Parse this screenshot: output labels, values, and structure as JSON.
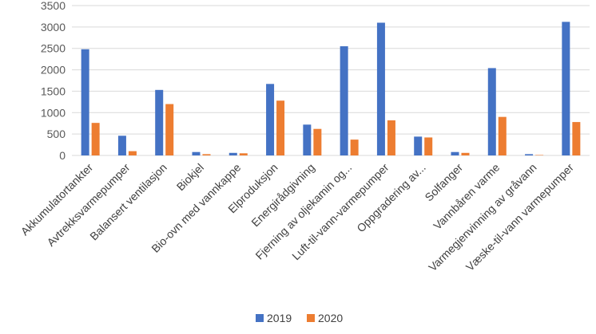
{
  "chart_data": {
    "type": "bar",
    "title": "",
    "xlabel": "",
    "ylabel": "",
    "ylim": [
      0,
      3500
    ],
    "yticks": [
      0,
      500,
      1000,
      1500,
      2000,
      2500,
      3000,
      3500
    ],
    "grid": true,
    "legend_position": "bottom",
    "categories": [
      "Akkumulatortankter",
      "Avtrekksvarmepumper",
      "Balansert ventilasjon",
      "Biokjel",
      "Bio-ovn med vannkappe",
      "Elproduksjon",
      "Energirådgivning",
      "Fjerning av oljekamin og...",
      "Luft-til-vann-varmepumper",
      "Oppgradering av...",
      "Solfanger",
      "Vannbåren varme",
      "Varmegjenvinning av gråvann",
      "Væske-til-vann varmepumper"
    ],
    "series": [
      {
        "name": "2019",
        "color": "#4472C4",
        "values": [
          2480,
          460,
          1530,
          80,
          60,
          1670,
          720,
          2550,
          3100,
          440,
          80,
          2040,
          30,
          3120
        ]
      },
      {
        "name": "2020",
        "color": "#ED7D31",
        "values": [
          760,
          100,
          1200,
          30,
          50,
          1280,
          620,
          370,
          820,
          420,
          60,
          900,
          10,
          780
        ]
      }
    ]
  }
}
